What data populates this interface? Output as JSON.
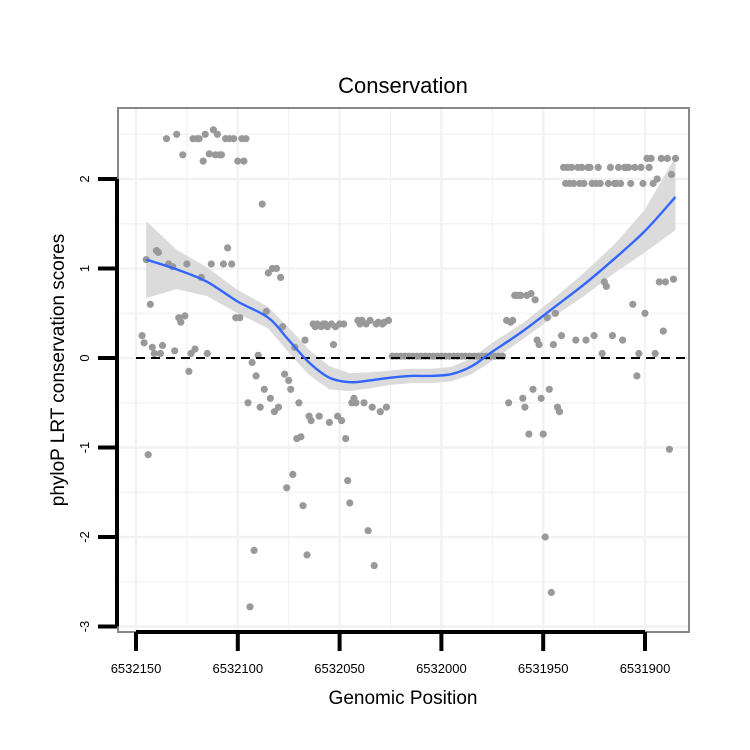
{
  "chart_data": {
    "type": "scatter",
    "title": "Conservation",
    "xlabel": "Genomic Position",
    "ylabel": "phyloP LRT conservation scores",
    "xlim": [
      6532160,
      6531890
    ],
    "x_reversed": true,
    "ylim": [
      -3,
      2.8
    ],
    "grid": true,
    "x_ticks": [
      6532150,
      6532100,
      6532050,
      6532000,
      6531950,
      6531900
    ],
    "x_tick_labels": [
      "6532150",
      "6532100",
      "6532050",
      "6532000",
      "6531950",
      "6531900"
    ],
    "y_ticks": [
      -3,
      -2,
      -1,
      0,
      1,
      2
    ],
    "y_tick_labels": [
      "-3",
      "-2",
      "-1",
      "0",
      "1",
      "2"
    ],
    "reference_line": {
      "y": 0,
      "style": "dashed"
    },
    "colors": {
      "points": "#999999",
      "smooth_line": "#3366FF",
      "ci_band": "#d9d9d9",
      "panel_border": "#888888",
      "grid": "#f2f2f2"
    },
    "series": [
      {
        "name": "scores",
        "kind": "points",
        "points": [
          [
            6532147,
            0.25
          ],
          [
            6532146,
            0.17
          ],
          [
            6532145,
            1.1
          ],
          [
            6532144,
            -1.08
          ],
          [
            6532143,
            0.6
          ],
          [
            6532142,
            0.12
          ],
          [
            6532141,
            0.05
          ],
          [
            6532140,
            1.2
          ],
          [
            6532139,
            1.18
          ],
          [
            6532138,
            0.05
          ],
          [
            6532137,
            0.14
          ],
          [
            6532135,
            2.45
          ],
          [
            6532134,
            1.05
          ],
          [
            6532132,
            1.02
          ],
          [
            6532131,
            0.08
          ],
          [
            6532130,
            2.5
          ],
          [
            6532129,
            0.45
          ],
          [
            6532128,
            0.4
          ],
          [
            6532127,
            2.27
          ],
          [
            6532126,
            0.47
          ],
          [
            6532125,
            1.05
          ],
          [
            6532124,
            -0.15
          ],
          [
            6532123,
            0.05
          ],
          [
            6532122,
            2.45
          ],
          [
            6532121,
            0.1
          ],
          [
            6532120,
            2.45
          ],
          [
            6532119,
            2.45
          ],
          [
            6532118,
            0.9
          ],
          [
            6532117,
            2.2
          ],
          [
            6532116,
            2.5
          ],
          [
            6532115,
            0.05
          ],
          [
            6532114,
            2.28
          ],
          [
            6532113,
            1.05
          ],
          [
            6532112,
            2.55
          ],
          [
            6532111,
            2.27
          ],
          [
            6532110,
            2.5
          ],
          [
            6532109,
            2.27
          ],
          [
            6532108,
            2.27
          ],
          [
            6532107,
            1.05
          ],
          [
            6532106,
            2.45
          ],
          [
            6532105,
            1.23
          ],
          [
            6532104,
            2.45
          ],
          [
            6532103,
            1.05
          ],
          [
            6532102,
            2.45
          ],
          [
            6532101,
            0.45
          ],
          [
            6532100,
            2.2
          ],
          [
            6532099,
            0.45
          ],
          [
            6532098,
            2.45
          ],
          [
            6532097,
            2.2
          ],
          [
            6532096,
            2.45
          ],
          [
            6532095,
            -0.5
          ],
          [
            6532094,
            -2.78
          ],
          [
            6532093,
            -0.05
          ],
          [
            6532092,
            -2.15
          ],
          [
            6532091,
            -0.2
          ],
          [
            6532090,
            0.03
          ],
          [
            6532089,
            -0.55
          ],
          [
            6532088,
            1.72
          ],
          [
            6532087,
            -0.35
          ],
          [
            6532086,
            0.52
          ],
          [
            6532085,
            0.95
          ],
          [
            6532084,
            -0.45
          ],
          [
            6532083,
            1.0
          ],
          [
            6532082,
            -0.6
          ],
          [
            6532081,
            1.0
          ],
          [
            6532080,
            -0.55
          ],
          [
            6532079,
            0.9
          ],
          [
            6532078,
            0.35
          ],
          [
            6532077,
            -0.18
          ],
          [
            6532076,
            -1.45
          ],
          [
            6532075,
            -0.25
          ],
          [
            6532074,
            -0.35
          ],
          [
            6532073,
            -1.3
          ],
          [
            6532072,
            0.12
          ],
          [
            6532071,
            -0.9
          ],
          [
            6532070,
            -0.5
          ],
          [
            6532069,
            -0.88
          ],
          [
            6532068,
            -1.65
          ],
          [
            6532067,
            0.2
          ],
          [
            6532066,
            -2.2
          ],
          [
            6532065,
            -0.65
          ],
          [
            6532064,
            -0.7
          ],
          [
            6532063,
            0.38
          ],
          [
            6532062,
            0.35
          ],
          [
            6532061,
            0.38
          ],
          [
            6532060,
            -0.65
          ],
          [
            6532059,
            0.35
          ],
          [
            6532058,
            0.38
          ],
          [
            6532057,
            0.38
          ],
          [
            6532056,
            0.35
          ],
          [
            6532055,
            -0.72
          ],
          [
            6532054,
            0.38
          ],
          [
            6532053,
            0.15
          ],
          [
            6532052,
            0.35
          ],
          [
            6532051,
            -0.65
          ],
          [
            6532050,
            0.38
          ],
          [
            6532049,
            -0.7
          ],
          [
            6532048,
            0.38
          ],
          [
            6532047,
            -0.9
          ],
          [
            6532046,
            -1.37
          ],
          [
            6532045,
            -1.62
          ],
          [
            6532044,
            -0.5
          ],
          [
            6532043,
            -0.45
          ],
          [
            6532042,
            -0.5
          ],
          [
            6532041,
            0.42
          ],
          [
            6532040,
            0.38
          ],
          [
            6532039,
            0.42
          ],
          [
            6532038,
            -0.5
          ],
          [
            6532037,
            0.38
          ],
          [
            6532036,
            -1.93
          ],
          [
            6532035,
            0.42
          ],
          [
            6532034,
            -0.55
          ],
          [
            6532033,
            -2.32
          ],
          [
            6532032,
            0.38
          ],
          [
            6532031,
            0.4
          ],
          [
            6532030,
            -0.6
          ],
          [
            6532029,
            0.38
          ],
          [
            6532028,
            0.4
          ],
          [
            6532027,
            -0.55
          ],
          [
            6532026,
            0.42
          ],
          [
            6532024,
            0.02
          ],
          [
            6532022,
            0.02
          ],
          [
            6532020,
            0.02
          ],
          [
            6532018,
            0.02
          ],
          [
            6532016,
            0.02
          ],
          [
            6532014,
            0.02
          ],
          [
            6532012,
            0.02
          ],
          [
            6532010,
            0.02
          ],
          [
            6532008,
            0.02
          ],
          [
            6532006,
            0.02
          ],
          [
            6532004,
            0.02
          ],
          [
            6532002,
            0.02
          ],
          [
            6532000,
            0.02
          ],
          [
            6531998,
            0.02
          ],
          [
            6531996,
            0.02
          ],
          [
            6531994,
            0.02
          ],
          [
            6531992,
            0.02
          ],
          [
            6531990,
            0.02
          ],
          [
            6531988,
            0.02
          ],
          [
            6531986,
            0.02
          ],
          [
            6531984,
            0.02
          ],
          [
            6531982,
            0.02
          ],
          [
            6531980,
            0.02
          ],
          [
            6531978,
            0.02
          ],
          [
            6531976,
            0.02
          ],
          [
            6531974,
            0.02
          ],
          [
            6531972,
            0.02
          ],
          [
            6531970,
            0.02
          ],
          [
            6531968,
            0.42
          ],
          [
            6531967,
            -0.5
          ],
          [
            6531966,
            0.4
          ],
          [
            6531965,
            0.42
          ],
          [
            6531964,
            0.7
          ],
          [
            6531963,
            0.7
          ],
          [
            6531962,
            0.7
          ],
          [
            6531961,
            0.7
          ],
          [
            6531960,
            -0.45
          ],
          [
            6531959,
            -0.55
          ],
          [
            6531958,
            0.7
          ],
          [
            6531957,
            -0.85
          ],
          [
            6531956,
            0.72
          ],
          [
            6531955,
            -0.35
          ],
          [
            6531954,
            0.65
          ],
          [
            6531953,
            0.2
          ],
          [
            6531952,
            0.15
          ],
          [
            6531951,
            -0.45
          ],
          [
            6531950,
            -0.85
          ],
          [
            6531949,
            -2.0
          ],
          [
            6531948,
            0.45
          ],
          [
            6531947,
            -0.35
          ],
          [
            6531946,
            -2.62
          ],
          [
            6531945,
            0.15
          ],
          [
            6531944,
            0.5
          ],
          [
            6531943,
            -0.55
          ],
          [
            6531942,
            -0.6
          ],
          [
            6531941,
            0.25
          ],
          [
            6531940,
            2.13
          ],
          [
            6531939,
            1.95
          ],
          [
            6531938,
            2.13
          ],
          [
            6531937,
            1.95
          ],
          [
            6531936,
            2.13
          ],
          [
            6531935,
            1.95
          ],
          [
            6531934,
            0.2
          ],
          [
            6531933,
            2.13
          ],
          [
            6531932,
            1.95
          ],
          [
            6531931,
            2.13
          ],
          [
            6531930,
            1.95
          ],
          [
            6531929,
            0.2
          ],
          [
            6531928,
            2.13
          ],
          [
            6531927,
            2.13
          ],
          [
            6531926,
            1.95
          ],
          [
            6531925,
            0.25
          ],
          [
            6531924,
            1.95
          ],
          [
            6531923,
            2.13
          ],
          [
            6531922,
            1.95
          ],
          [
            6531921,
            0.05
          ],
          [
            6531920,
            0.85
          ],
          [
            6531919,
            0.8
          ],
          [
            6531918,
            1.95
          ],
          [
            6531917,
            2.13
          ],
          [
            6531916,
            0.25
          ],
          [
            6531915,
            1.95
          ],
          [
            6531914,
            1.95
          ],
          [
            6531913,
            2.13
          ],
          [
            6531912,
            1.95
          ],
          [
            6531911,
            0.2
          ],
          [
            6531910,
            2.13
          ],
          [
            6531909,
            2.13
          ],
          [
            6531908,
            2.13
          ],
          [
            6531907,
            1.95
          ],
          [
            6531906,
            0.6
          ],
          [
            6531905,
            2.13
          ],
          [
            6531904,
            -0.2
          ],
          [
            6531903,
            0.05
          ],
          [
            6531902,
            2.13
          ],
          [
            6531901,
            1.95
          ],
          [
            6531900,
            0.5
          ],
          [
            6531899,
            2.23
          ],
          [
            6531898,
            2.13
          ],
          [
            6531897,
            2.23
          ],
          [
            6531896,
            1.95
          ],
          [
            6531895,
            0.05
          ],
          [
            6531894,
            2.0
          ],
          [
            6531893,
            0.85
          ],
          [
            6531892,
            2.23
          ],
          [
            6531891,
            0.3
          ],
          [
            6531890,
            0.85
          ],
          [
            6531889,
            2.23
          ],
          [
            6531888,
            -1.02
          ],
          [
            6531887,
            2.05
          ],
          [
            6531886,
            0.88
          ],
          [
            6531885,
            2.23
          ]
        ]
      },
      {
        "name": "smooth",
        "kind": "line",
        "x": [
          6532145,
          6532130,
          6532115,
          6532100,
          6532085,
          6532075,
          6532065,
          6532055,
          6532045,
          6532035,
          6532025,
          6532015,
          6532005,
          6531995,
          6531985,
          6531975,
          6531960,
          6531945,
          6531930,
          6531915,
          6531900,
          6531885
        ],
        "y": [
          1.1,
          0.99,
          0.85,
          0.63,
          0.45,
          0.2,
          -0.05,
          -0.22,
          -0.27,
          -0.25,
          -0.22,
          -0.2,
          -0.2,
          -0.18,
          -0.09,
          0.07,
          0.3,
          0.56,
          0.82,
          1.11,
          1.42,
          1.8
        ],
        "ci_lower": [
          0.67,
          0.77,
          0.69,
          0.5,
          0.33,
          0.06,
          -0.19,
          -0.35,
          -0.37,
          -0.34,
          -0.3,
          -0.28,
          -0.28,
          -0.26,
          -0.18,
          -0.03,
          0.21,
          0.46,
          0.69,
          0.95,
          1.18,
          1.43
        ],
        "ci_upper": [
          1.53,
          1.21,
          1.01,
          0.76,
          0.57,
          0.34,
          0.09,
          -0.09,
          -0.17,
          -0.16,
          -0.14,
          -0.12,
          -0.12,
          -0.1,
          0.0,
          0.17,
          0.39,
          0.66,
          0.95,
          1.27,
          1.66,
          2.25
        ]
      }
    ]
  }
}
